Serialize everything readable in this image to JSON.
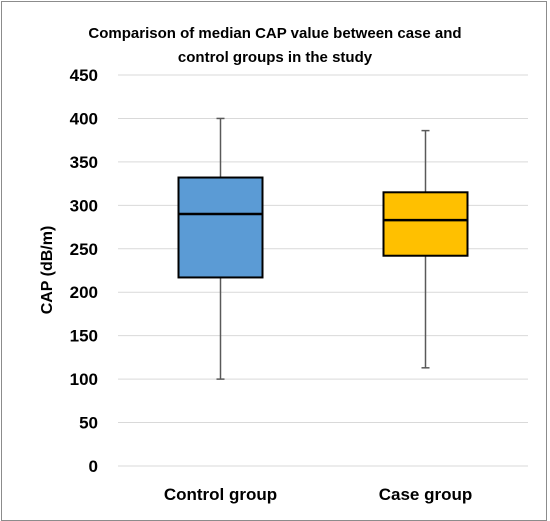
{
  "chart_data": {
    "type": "box",
    "title_lines": [
      "Comparison of median CAP value between case and",
      "control groups in the study"
    ],
    "xlabel": "",
    "ylabel": "CAP (dB/m)",
    "ylim": [
      0,
      450
    ],
    "yticks": [
      0,
      50,
      100,
      150,
      200,
      250,
      300,
      350,
      400,
      450
    ],
    "grid": true,
    "categories": [
      "Control group",
      "Case group"
    ],
    "boxes": [
      {
        "category": "Control group",
        "min": 100,
        "q1": 217,
        "median": 290,
        "q3": 332,
        "max": 400,
        "color": "#5b9bd5"
      },
      {
        "category": "Case group",
        "min": 113,
        "q1": 242,
        "median": 283,
        "q3": 315,
        "max": 386,
        "color": "#ffc000"
      }
    ]
  }
}
